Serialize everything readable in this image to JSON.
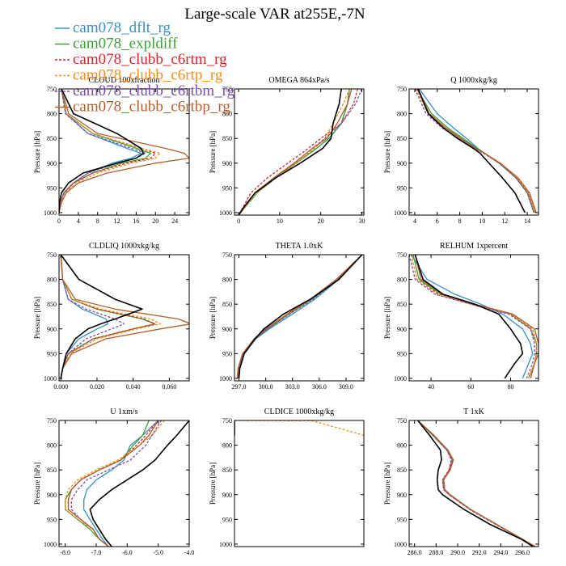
{
  "chart_data": {
    "type": "line",
    "title": "Large-scale VAR at255E,-7N",
    "legend": {
      "placement": "top-left",
      "entries": [
        {
          "name": "cam078_dflt_rg",
          "color": "#3a8fc4",
          "dash": "solid"
        },
        {
          "name": "cam078_expldiff",
          "color": "#3aa037",
          "dash": "solid"
        },
        {
          "name": "cam078_clubb_c6rtm_rg",
          "color": "#d7262b",
          "dash": "dashed"
        },
        {
          "name": "cam078_clubb_c6rtp_rg",
          "color": "#f28c1c",
          "dash": "dashed"
        },
        {
          "name": "cam078_clubb_c6rtbm_rg",
          "color": "#7a4ea8",
          "dash": "dashed"
        },
        {
          "name": "cam078_clubb_c6rtbp_rg",
          "color": "#b35e2a",
          "dash": "solid"
        },
        {
          "name": "",
          "color": "#000000",
          "dash": "solid"
        }
      ]
    },
    "y_axis": {
      "label": "Pressure [hPa]",
      "range": [
        750,
        1005
      ],
      "ticks": [
        "750",
        "800",
        "850",
        "900",
        "950",
        "1000"
      ]
    },
    "panels": [
      {
        "title": "CLOUD 100xfraction",
        "xlim": [
          0,
          27
        ],
        "xticks": [
          {
            "v": 0,
            "label": "0"
          },
          {
            "v": 4,
            "label": "4"
          },
          {
            "v": 8,
            "label": "8"
          },
          {
            "v": 12,
            "label": "12"
          },
          {
            "v": 16,
            "label": "16"
          },
          {
            "v": 20,
            "label": "20"
          },
          {
            "v": 24,
            "label": "24"
          }
        ],
        "p": [
          750,
          800,
          840,
          870,
          880,
          890,
          900,
          920,
          940,
          960,
          980,
          1000
        ],
        "series": [
          [
            0.5,
            1.5,
            6,
            14,
            17,
            15,
            11,
            6,
            3,
            1,
            0.3,
            0
          ],
          [
            0.5,
            1.5,
            7,
            16,
            19,
            18,
            13,
            7,
            3,
            1,
            0.3,
            0
          ],
          [
            0.5,
            1.5,
            7,
            17,
            20,
            19,
            14,
            7,
            3,
            1,
            0.3,
            0
          ],
          [
            0.5,
            1.5,
            7,
            17,
            21,
            20,
            15,
            8,
            3.5,
            1.2,
            0.3,
            0
          ],
          [
            0.5,
            1.3,
            6,
            15,
            18,
            16,
            12,
            6,
            3,
            1,
            0.3,
            0
          ],
          [
            0.5,
            2,
            8,
            22,
            26,
            27,
            20,
            10,
            4,
            1.5,
            0.5,
            0
          ],
          [
            0.5,
            3,
            12,
            17,
            17.5,
            16,
            12,
            5,
            2,
            0.5,
            0.1,
            0
          ]
        ]
      },
      {
        "title": "OMEGA  864xPa/s",
        "xlim": [
          -1,
          30.5
        ],
        "xticks": [
          {
            "v": 0,
            "label": "0"
          },
          {
            "v": 10,
            "label": "10"
          },
          {
            "v": 20,
            "label": "20"
          },
          {
            "v": 30,
            "label": "30"
          }
        ],
        "p": [
          750,
          780,
          820,
          850,
          870,
          900,
          930,
          960,
          990,
          1005
        ],
        "series": [
          [
            27,
            26.5,
            25,
            22,
            19,
            14,
            9,
            4.5,
            1.5,
            0
          ],
          [
            27,
            26.5,
            25,
            22,
            19,
            14,
            9,
            4.5,
            1.5,
            0
          ],
          [
            29,
            28,
            25,
            20,
            17,
            12,
            7,
            3,
            1,
            0
          ],
          [
            27,
            25.5,
            23,
            21,
            18.5,
            14,
            9,
            4.5,
            1.5,
            0
          ],
          [
            30,
            28.5,
            25,
            21,
            18,
            13.5,
            8.5,
            4,
            1.2,
            0
          ],
          [
            27.5,
            26.5,
            24,
            21.5,
            18,
            13.5,
            8.5,
            4,
            1.2,
            0
          ],
          [
            25,
            24.5,
            23,
            22.5,
            20.5,
            15,
            9,
            4,
            1.2,
            0
          ]
        ]
      },
      {
        "title": "Q  1000xkg/kg",
        "xlim": [
          3.5,
          15
        ],
        "xticks": [
          {
            "v": 4,
            "label": "4"
          },
          {
            "v": 6,
            "label": "6"
          },
          {
            "v": 8,
            "label": "8"
          },
          {
            "v": 10,
            "label": "10"
          },
          {
            "v": 12,
            "label": "12"
          },
          {
            "v": 14,
            "label": "14"
          }
        ],
        "p": [
          750,
          800,
          830,
          850,
          870,
          880,
          900,
          930,
          960,
          1000
        ],
        "series": [
          [
            4.4,
            6.0,
            7.5,
            8.6,
            9.6,
            10.2,
            11.5,
            13.0,
            14.0,
            14.6
          ],
          [
            4.2,
            5.5,
            7.0,
            8.3,
            9.5,
            10.2,
            11.5,
            13.0,
            14.0,
            14.6
          ],
          [
            4.2,
            5.3,
            6.8,
            8.1,
            9.4,
            10.2,
            11.6,
            13.1,
            14.1,
            14.7
          ],
          [
            4.1,
            5.2,
            6.7,
            8.0,
            9.3,
            10.2,
            11.6,
            13.1,
            14.1,
            14.7
          ],
          [
            4.0,
            5.0,
            6.5,
            7.9,
            9.3,
            10.1,
            11.5,
            13.0,
            14.0,
            14.6
          ],
          [
            4.3,
            5.3,
            6.8,
            8.1,
            9.4,
            10.2,
            11.6,
            13.2,
            14.2,
            14.8
          ],
          [
            4.3,
            5.2,
            6.6,
            7.8,
            9.2,
            9.8,
            10.6,
            11.8,
            12.9,
            13.8
          ]
        ]
      },
      {
        "title": "CLDLIQ  1000xkg/kg",
        "xlim": [
          -0.001,
          0.071
        ],
        "xticks": [
          {
            "v": 0,
            "label": "0.000"
          },
          {
            "v": 0.02,
            "label": "0.020"
          },
          {
            "v": 0.04,
            "label": "0.040"
          },
          {
            "v": 0.06,
            "label": "0.060"
          }
        ],
        "p": [
          750,
          800,
          840,
          860,
          880,
          890,
          900,
          920,
          950,
          980,
          1000
        ],
        "series": [
          [
            0,
            0.001,
            0.004,
            0.012,
            0.025,
            0.026,
            0.02,
            0.01,
            0.003,
            0.001,
            0
          ],
          [
            0,
            0.001,
            0.006,
            0.02,
            0.045,
            0.052,
            0.04,
            0.018,
            0.004,
            0.001,
            0
          ],
          [
            0,
            0.001,
            0.006,
            0.02,
            0.046,
            0.052,
            0.04,
            0.018,
            0.004,
            0.001,
            0
          ],
          [
            0,
            0.001,
            0.006,
            0.022,
            0.05,
            0.055,
            0.042,
            0.02,
            0.005,
            0.001,
            0
          ],
          [
            0,
            0.001,
            0.004,
            0.014,
            0.03,
            0.035,
            0.028,
            0.014,
            0.004,
            0.001,
            0
          ],
          [
            0,
            0.001,
            0.008,
            0.03,
            0.065,
            0.072,
            0.055,
            0.025,
            0.006,
            0.001,
            0
          ],
          [
            0,
            0.01,
            0.03,
            0.045,
            0.03,
            0.022,
            0.015,
            0.008,
            0.003,
            0.001,
            0
          ]
        ]
      },
      {
        "title": "THETA  1.0xK",
        "xlim": [
          296.5,
          311.0
        ],
        "xticks": [
          {
            "v": 297,
            "label": "297.0"
          },
          {
            "v": 300,
            "label": "300.0"
          },
          {
            "v": 303,
            "label": "303.0"
          },
          {
            "v": 306,
            "label": "306.0"
          },
          {
            "v": 309,
            "label": "309.0"
          }
        ],
        "p": [
          750,
          800,
          840,
          870,
          900,
          920,
          950,
          980,
          1000
        ],
        "series": [
          [
            310.8,
            308.2,
            305.5,
            303.0,
            300.4,
            298.9,
            297.6,
            297.1,
            297.0
          ],
          [
            310.8,
            308.0,
            305.2,
            302.6,
            300.2,
            298.8,
            297.5,
            297.0,
            296.9
          ],
          [
            310.8,
            308.0,
            305.1,
            302.5,
            300.1,
            298.8,
            297.5,
            297.0,
            296.9
          ],
          [
            310.8,
            308.0,
            305.1,
            302.5,
            300.1,
            298.8,
            297.5,
            297.0,
            296.9
          ],
          [
            310.8,
            308.1,
            305.3,
            302.7,
            300.2,
            298.8,
            297.5,
            297.0,
            296.9
          ],
          [
            310.8,
            307.9,
            305.0,
            302.4,
            300.0,
            298.7,
            297.4,
            296.9,
            296.8
          ],
          [
            310.8,
            308.2,
            305.0,
            302.0,
            299.8,
            298.8,
            297.6,
            297.1,
            297.0
          ]
        ]
      },
      {
        "title": "RELHUM  1xpercent",
        "xlim": [
          29,
          94
        ],
        "xticks": [
          {
            "v": 40,
            "label": "40"
          },
          {
            "v": 60,
            "label": "60"
          },
          {
            "v": 80,
            "label": "80"
          }
        ],
        "p": [
          750,
          800,
          830,
          850,
          870,
          900,
          930,
          950,
          970,
          1000
        ],
        "series": [
          [
            30,
            38,
            52,
            65,
            76,
            86,
            90,
            91,
            89,
            86
          ],
          [
            31,
            34,
            45,
            62,
            80,
            90,
            93,
            93,
            92,
            89
          ],
          [
            30,
            33,
            44,
            61,
            80,
            91,
            93,
            93,
            92,
            89
          ],
          [
            30,
            33,
            43,
            60,
            80,
            91,
            93,
            93,
            92,
            89
          ],
          [
            29,
            32,
            42,
            60,
            79,
            90,
            92,
            92,
            91,
            88
          ],
          [
            32,
            35,
            46,
            62,
            81,
            92,
            94,
            94,
            92,
            90
          ],
          [
            32,
            36,
            46,
            62,
            74,
            80,
            85,
            86,
            82,
            77
          ]
        ]
      },
      {
        "title": "U  1xm/s",
        "xlim": [
          -8.2,
          -4.0
        ],
        "xticks": [
          {
            "v": -8,
            "label": "-8.0"
          },
          {
            "v": -7,
            "label": "-7.0"
          },
          {
            "v": -6,
            "label": "-6.0"
          },
          {
            "v": -5,
            "label": "-5.0"
          },
          {
            "v": -4,
            "label": "-4.0"
          }
        ],
        "p": [
          750,
          780,
          800,
          830,
          850,
          870,
          890,
          910,
          930,
          950,
          970,
          990,
          1005
        ],
        "series": [
          [
            -5.0,
            -5.5,
            -5.9,
            -6.1,
            -6.5,
            -7.0,
            -7.3,
            -7.4,
            -7.4,
            -7.2,
            -7.0,
            -6.8,
            -6.6
          ],
          [
            -5.3,
            -5.5,
            -5.8,
            -6.2,
            -6.9,
            -7.5,
            -7.8,
            -8.0,
            -8.0,
            -7.6,
            -7.2,
            -6.9,
            -6.6
          ],
          [
            -5.0,
            -5.4,
            -5.7,
            -6.2,
            -6.9,
            -7.5,
            -7.8,
            -7.9,
            -7.9,
            -7.5,
            -7.1,
            -6.9,
            -6.6
          ],
          [
            -4.8,
            -5.2,
            -5.6,
            -6.3,
            -7.0,
            -7.6,
            -7.9,
            -8.0,
            -8.0,
            -7.6,
            -7.1,
            -6.9,
            -6.6
          ],
          [
            -4.9,
            -5.2,
            -5.4,
            -5.9,
            -6.6,
            -7.3,
            -7.6,
            -7.8,
            -7.8,
            -7.5,
            -7.1,
            -6.9,
            -6.6
          ],
          [
            -5.0,
            -5.3,
            -5.6,
            -6.2,
            -6.9,
            -7.5,
            -7.8,
            -7.9,
            -7.9,
            -7.5,
            -7.1,
            -6.9,
            -6.6
          ],
          [
            -4.0,
            -4.4,
            -4.7,
            -5.1,
            -5.5,
            -6.0,
            -6.5,
            -6.9,
            -7.2,
            -7.1,
            -6.9,
            -6.7,
            -6.5
          ]
        ]
      },
      {
        "title": "CLDICE  1000xkg/kg",
        "xlim": [
          0,
          1
        ],
        "xticks": [],
        "p": [
          750,
          750.5,
          780
        ],
        "series": [
          [
            0,
            0,
            0
          ],
          [
            0,
            0,
            0
          ],
          [
            0,
            0,
            0
          ],
          [
            0,
            0.6,
            1.0
          ],
          [
            0,
            0,
            0
          ],
          [
            0,
            0,
            0
          ],
          [
            0,
            0,
            0
          ]
        ]
      },
      {
        "title": "T  1xK",
        "xlim": [
          285.5,
          297.5
        ],
        "xticks": [
          {
            "v": 286,
            "label": "286.0"
          },
          {
            "v": 288,
            "label": "288.0"
          },
          {
            "v": 290,
            "label": "290.0"
          },
          {
            "v": 292,
            "label": "292.0"
          },
          {
            "v": 294,
            "label": "294.0"
          },
          {
            "v": 296,
            "label": "296.0"
          }
        ],
        "p": [
          750,
          780,
          810,
          830,
          850,
          870,
          890,
          900,
          930,
          960,
          990,
          1005
        ],
        "series": [
          [
            286.3,
            287.8,
            289.0,
            289.5,
            289.2,
            288.7,
            288.8,
            289.3,
            291.2,
            293.6,
            296.0,
            297.2
          ],
          [
            286.3,
            287.7,
            289.0,
            289.5,
            289.3,
            288.7,
            288.8,
            289.3,
            291.2,
            293.6,
            296.0,
            297.2
          ],
          [
            286.3,
            287.7,
            289.0,
            289.4,
            289.2,
            288.6,
            288.7,
            289.2,
            291.2,
            293.6,
            296.0,
            297.2
          ],
          [
            286.3,
            287.8,
            289.1,
            289.6,
            289.3,
            288.7,
            288.8,
            289.3,
            291.2,
            293.6,
            296.0,
            297.2
          ],
          [
            286.3,
            287.7,
            289.0,
            289.5,
            289.3,
            288.6,
            288.7,
            289.2,
            291.1,
            293.5,
            296.0,
            297.2
          ],
          [
            286.3,
            287.8,
            289.1,
            289.6,
            289.3,
            288.7,
            288.8,
            289.3,
            291.2,
            293.6,
            296.0,
            297.2
          ],
          [
            286.3,
            287.4,
            288.4,
            288.5,
            288.2,
            288.1,
            288.2,
            288.6,
            290.6,
            293.0,
            295.9,
            297.0
          ]
        ]
      }
    ]
  }
}
